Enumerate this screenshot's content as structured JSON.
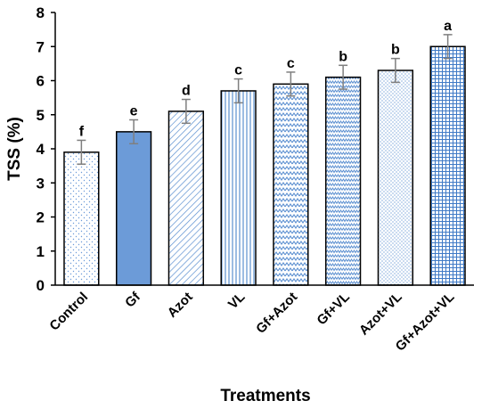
{
  "chart_data": {
    "type": "bar",
    "ylabel": "TSS (%)",
    "xlabel": "Treatments",
    "ylim": [
      0,
      8
    ],
    "yticks": [
      0,
      1,
      2,
      3,
      4,
      5,
      6,
      7,
      8
    ],
    "grid": false,
    "legend": "none",
    "categories": [
      "Control",
      "Gf",
      "Azot",
      "VL",
      "Gf+Azot",
      "Gf+VL",
      "Azot+VL",
      "Gf+Azot+VL"
    ],
    "values": [
      3.9,
      4.5,
      5.1,
      5.7,
      5.9,
      6.1,
      6.3,
      7.0
    ],
    "errors": [
      0.35,
      0.35,
      0.35,
      0.35,
      0.35,
      0.35,
      0.35,
      0.35
    ],
    "significance_letters": [
      "f",
      "e",
      "d",
      "c",
      "c",
      "b",
      "b",
      "a"
    ],
    "fills": [
      "dots-sparse",
      "solid",
      "diagonal",
      "vertical",
      "zigzag",
      "wave",
      "dots-dense",
      "grid"
    ],
    "colors": {
      "bar_outline": "#000000",
      "bar_pattern": "#5b8fd0",
      "bar_solid": "#6c9bd8",
      "error_bar": "#7f7f7f"
    }
  }
}
